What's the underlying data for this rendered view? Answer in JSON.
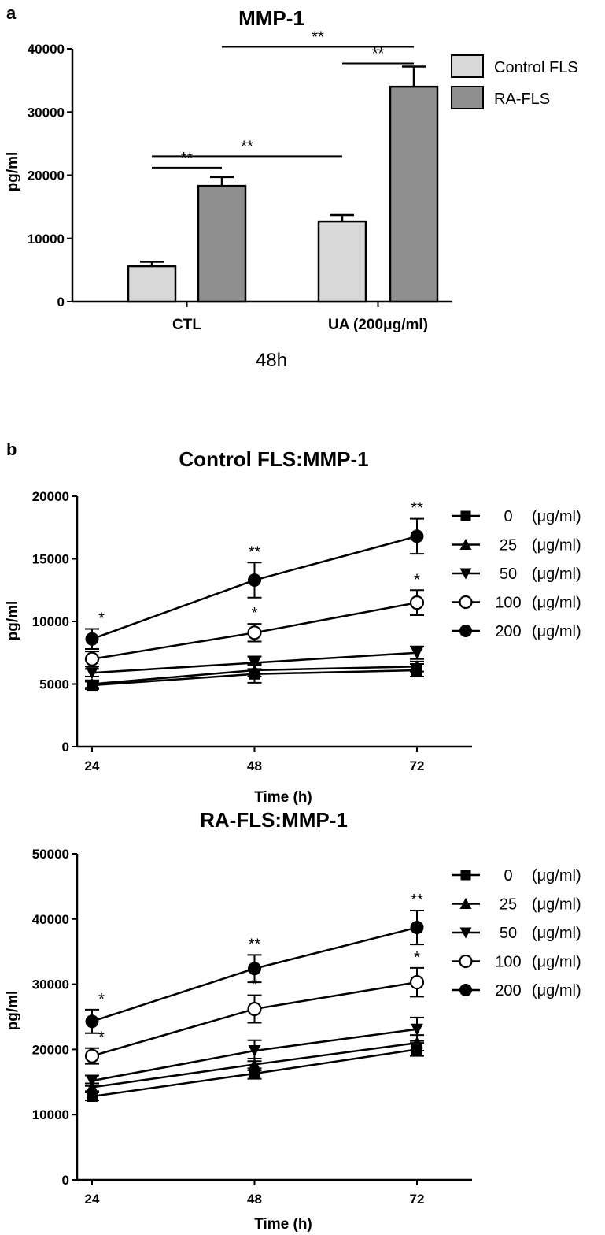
{
  "chart_data": [
    {
      "panel": "a",
      "type": "bar",
      "title": "MMP-1",
      "ylabel": "pg/ml",
      "xlabel": "48h",
      "ylim": [
        0,
        40000
      ],
      "yticks": [
        "0",
        "10000",
        "20000",
        "30000",
        "40000"
      ],
      "categories": [
        "CTL",
        "UA (200μg/ml)"
      ],
      "legend_position": "top-right",
      "series": [
        {
          "name": "Control FLS",
          "color": "#d8d8d8",
          "values": [
            5600,
            12700
          ],
          "errors": [
            700,
            1000
          ]
        },
        {
          "name": "RA-FLS",
          "color": "#8f8f8f",
          "values": [
            18300,
            34000
          ],
          "errors": [
            1400,
            3200
          ]
        }
      ],
      "annotations": [
        {
          "label": "**",
          "between": [
            "CTL Control FLS",
            "CTL RA-FLS"
          ]
        },
        {
          "label": "**",
          "between": [
            "CTL Control FLS",
            "UA (200μg/ml) Control FLS"
          ]
        },
        {
          "label": "**",
          "between": [
            "UA (200μg/ml) Control FLS",
            "UA (200μg/ml) RA-FLS"
          ]
        },
        {
          "label": "**",
          "between": [
            "CTL RA-FLS",
            "UA (200μg/ml) RA-FLS"
          ]
        }
      ]
    },
    {
      "panel": "b",
      "type": "line",
      "title": "Control FLS:MMP-1",
      "xlabel": "Time (h)",
      "ylabel": "pg/ml",
      "x": [
        24,
        48,
        72
      ],
      "xticks": [
        "24",
        "48",
        "72"
      ],
      "ylim": [
        0,
        20000
      ],
      "yticks": [
        "0",
        "5000",
        "10000",
        "15000",
        "20000"
      ],
      "legend_position": "right",
      "series": [
        {
          "name": "0",
          "unit": "(μg/ml)",
          "marker": "square",
          "values": [
            4900,
            5800,
            6100
          ],
          "errors": [
            300,
            700,
            500
          ],
          "sig": [
            "",
            "",
            ""
          ]
        },
        {
          "name": "25",
          "unit": "(μg/ml)",
          "marker": "triangle-up",
          "values": [
            5000,
            6100,
            6400
          ],
          "errors": [
            300,
            500,
            400
          ],
          "sig": [
            "",
            "",
            ""
          ]
        },
        {
          "name": "50",
          "unit": "(μg/ml)",
          "marker": "triangle-down",
          "values": [
            5900,
            6700,
            7500
          ],
          "errors": [
            300,
            500,
            500
          ],
          "sig": [
            "",
            "",
            ""
          ]
        },
        {
          "name": "100",
          "unit": "(μg/ml)",
          "marker": "circle-open",
          "values": [
            7000,
            9100,
            11500
          ],
          "errors": [
            600,
            700,
            1000
          ],
          "sig": [
            "",
            "*",
            "*"
          ]
        },
        {
          "name": "200",
          "unit": "(μg/ml)",
          "marker": "circle-filled",
          "values": [
            8600,
            13300,
            16800
          ],
          "errors": [
            800,
            1400,
            1400
          ],
          "sig": [
            "*",
            "**",
            "**"
          ]
        }
      ]
    },
    {
      "panel": "",
      "type": "line",
      "title": "RA-FLS:MMP-1",
      "xlabel": "Time (h)",
      "ylabel": "pg/ml",
      "x": [
        24,
        48,
        72
      ],
      "xticks": [
        "24",
        "48",
        "72"
      ],
      "ylim": [
        0,
        50000
      ],
      "yticks": [
        "0",
        "10000",
        "20000",
        "30000",
        "40000",
        "50000"
      ],
      "legend_position": "right",
      "series": [
        {
          "name": "0",
          "unit": "(μg/ml)",
          "marker": "square",
          "values": [
            12800,
            16300,
            20000
          ],
          "errors": [
            600,
            800,
            1000
          ],
          "sig": [
            "",
            "",
            ""
          ]
        },
        {
          "name": "25",
          "unit": "(μg/ml)",
          "marker": "triangle-up",
          "values": [
            14200,
            17700,
            21000
          ],
          "errors": [
            600,
            900,
            1200
          ],
          "sig": [
            "",
            "",
            ""
          ]
        },
        {
          "name": "50",
          "unit": "(μg/ml)",
          "marker": "triangle-down",
          "values": [
            15200,
            19800,
            23100
          ],
          "errors": [
            800,
            1600,
            1800
          ],
          "sig": [
            "",
            "",
            ""
          ]
        },
        {
          "name": "100",
          "unit": "(μg/ml)",
          "marker": "circle-open",
          "values": [
            19000,
            26200,
            30300
          ],
          "errors": [
            1200,
            2100,
            2200
          ],
          "sig": [
            "*",
            "*",
            "*"
          ]
        },
        {
          "name": "200",
          "unit": "(μg/ml)",
          "marker": "circle-filled",
          "values": [
            24300,
            32400,
            38700
          ],
          "errors": [
            1800,
            2100,
            2600
          ],
          "sig": [
            "*",
            "**",
            "**"
          ]
        }
      ]
    }
  ]
}
